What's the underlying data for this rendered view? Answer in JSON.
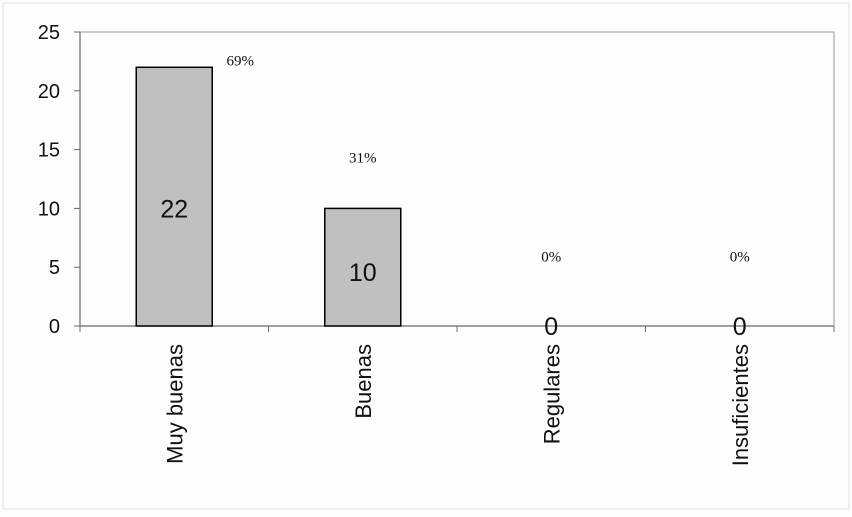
{
  "chart_data": {
    "type": "bar",
    "categories": [
      "Muy buenas",
      "Buenas",
      "Regulares",
      "Insuficientes"
    ],
    "values": [
      22,
      10,
      0,
      0
    ],
    "value_labels": [
      "22",
      "10",
      "0",
      "0"
    ],
    "percent_labels": [
      "69%",
      "31%",
      "0%",
      "0%"
    ],
    "yticks": [
      "0",
      "5",
      "10",
      "15",
      "20",
      "25"
    ],
    "ylim": [
      0,
      25
    ],
    "title": "",
    "xlabel": "",
    "ylabel": "",
    "grid": false,
    "legend": "none",
    "colors": {
      "bar_fill": "#c0c0c0",
      "bar_stroke": "#000000",
      "plot_border": "#9a9a9a",
      "axis": "#6a6a6a",
      "background": "#fdfdfd",
      "text": "#111111"
    }
  }
}
